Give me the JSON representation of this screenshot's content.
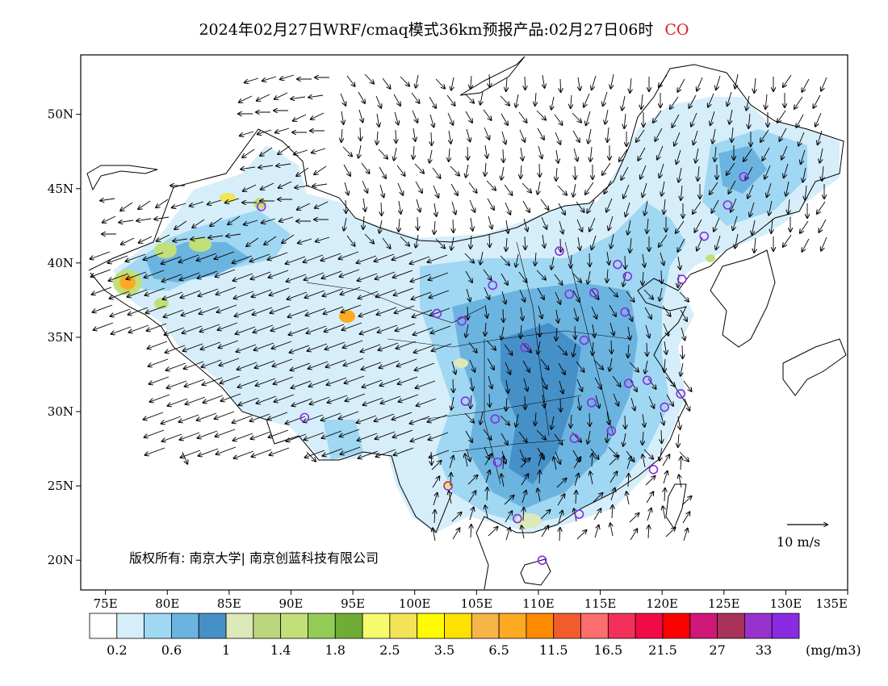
{
  "title": {
    "text": "2024年02月27日WRF/cmaq模式36km预报产品:02月27日06时",
    "species": "CO",
    "species_color": "#e02020"
  },
  "map": {
    "lon_range": [
      73,
      135
    ],
    "lat_range": [
      18,
      54
    ],
    "lon_ticks": [
      {
        "value": 75,
        "label": "75E"
      },
      {
        "value": 80,
        "label": "80E"
      },
      {
        "value": 85,
        "label": "85E"
      },
      {
        "value": 90,
        "label": "90E"
      },
      {
        "value": 95,
        "label": "95E"
      },
      {
        "value": 100,
        "label": "100E"
      },
      {
        "value": 105,
        "label": "105E"
      },
      {
        "value": 110,
        "label": "110E"
      },
      {
        "value": 115,
        "label": "115E"
      },
      {
        "value": 120,
        "label": "120E"
      },
      {
        "value": 125,
        "label": "125E"
      },
      {
        "value": 130,
        "label": "130E"
      },
      {
        "value": 135,
        "label": "135E"
      }
    ],
    "lat_ticks": [
      {
        "value": 20,
        "label": "20N"
      },
      {
        "value": 25,
        "label": "25N"
      },
      {
        "value": 30,
        "label": "30N"
      },
      {
        "value": 35,
        "label": "35N"
      },
      {
        "value": 40,
        "label": "40N"
      },
      {
        "value": 45,
        "label": "45N"
      },
      {
        "value": 50,
        "label": "50N"
      }
    ],
    "wind_reference_label": "10 m/s",
    "copyright": "版权所有: 南京大学| 南京创蓝科技有限公司"
  },
  "chart_data": {
    "type": "heatmap",
    "title": "2024年02月27日WRF/cmaq模式36km预报产品:02月27日06时 CO",
    "units": "(mg/m3)",
    "legend": {
      "colors": [
        "#ffffff",
        "#d6eefa",
        "#a0d7f2",
        "#6cb4e0",
        "#4690c8",
        "#dce9b8",
        "#bcd67c",
        "#c2e07a",
        "#92cc54",
        "#70ac38",
        "#f5fb6c",
        "#f2e456",
        "#fffc00",
        "#fee100",
        "#f7b447",
        "#fdaa22",
        "#fd8a00",
        "#f15c2e",
        "#fe6d6d",
        "#f2305a",
        "#f20a47",
        "#ff0000",
        "#d01878",
        "#a8325a",
        "#9932cc",
        "#8a2be2"
      ],
      "labels": [
        "0.2",
        "0.6",
        "1",
        "1.4",
        "1.8",
        "2.5",
        "3.5",
        "6.5",
        "11.5",
        "16.5",
        "21.5",
        "27",
        "33"
      ]
    },
    "stations": [
      [
        87.6,
        43.8
      ],
      [
        126.6,
        45.8
      ],
      [
        125.3,
        43.9
      ],
      [
        123.4,
        41.8
      ],
      [
        121.6,
        38.9
      ],
      [
        117.2,
        39.1
      ],
      [
        116.4,
        39.9
      ],
      [
        111.7,
        40.8
      ],
      [
        112.5,
        37.9
      ],
      [
        114.5,
        38.0
      ],
      [
        117.0,
        36.7
      ],
      [
        113.7,
        34.8
      ],
      [
        108.9,
        34.3
      ],
      [
        106.3,
        38.5
      ],
      [
        103.8,
        36.1
      ],
      [
        101.8,
        36.6
      ],
      [
        118.8,
        32.1
      ],
      [
        117.3,
        31.9
      ],
      [
        121.5,
        31.2
      ],
      [
        120.2,
        30.3
      ],
      [
        114.3,
        30.6
      ],
      [
        112.9,
        28.2
      ],
      [
        115.9,
        28.7
      ],
      [
        119.3,
        26.1
      ],
      [
        106.7,
        26.6
      ],
      [
        102.7,
        25.0
      ],
      [
        108.3,
        22.8
      ],
      [
        113.3,
        23.1
      ],
      [
        110.3,
        20.0
      ],
      [
        106.5,
        29.5
      ],
      [
        104.1,
        30.7
      ],
      [
        91.1,
        29.6
      ]
    ]
  }
}
